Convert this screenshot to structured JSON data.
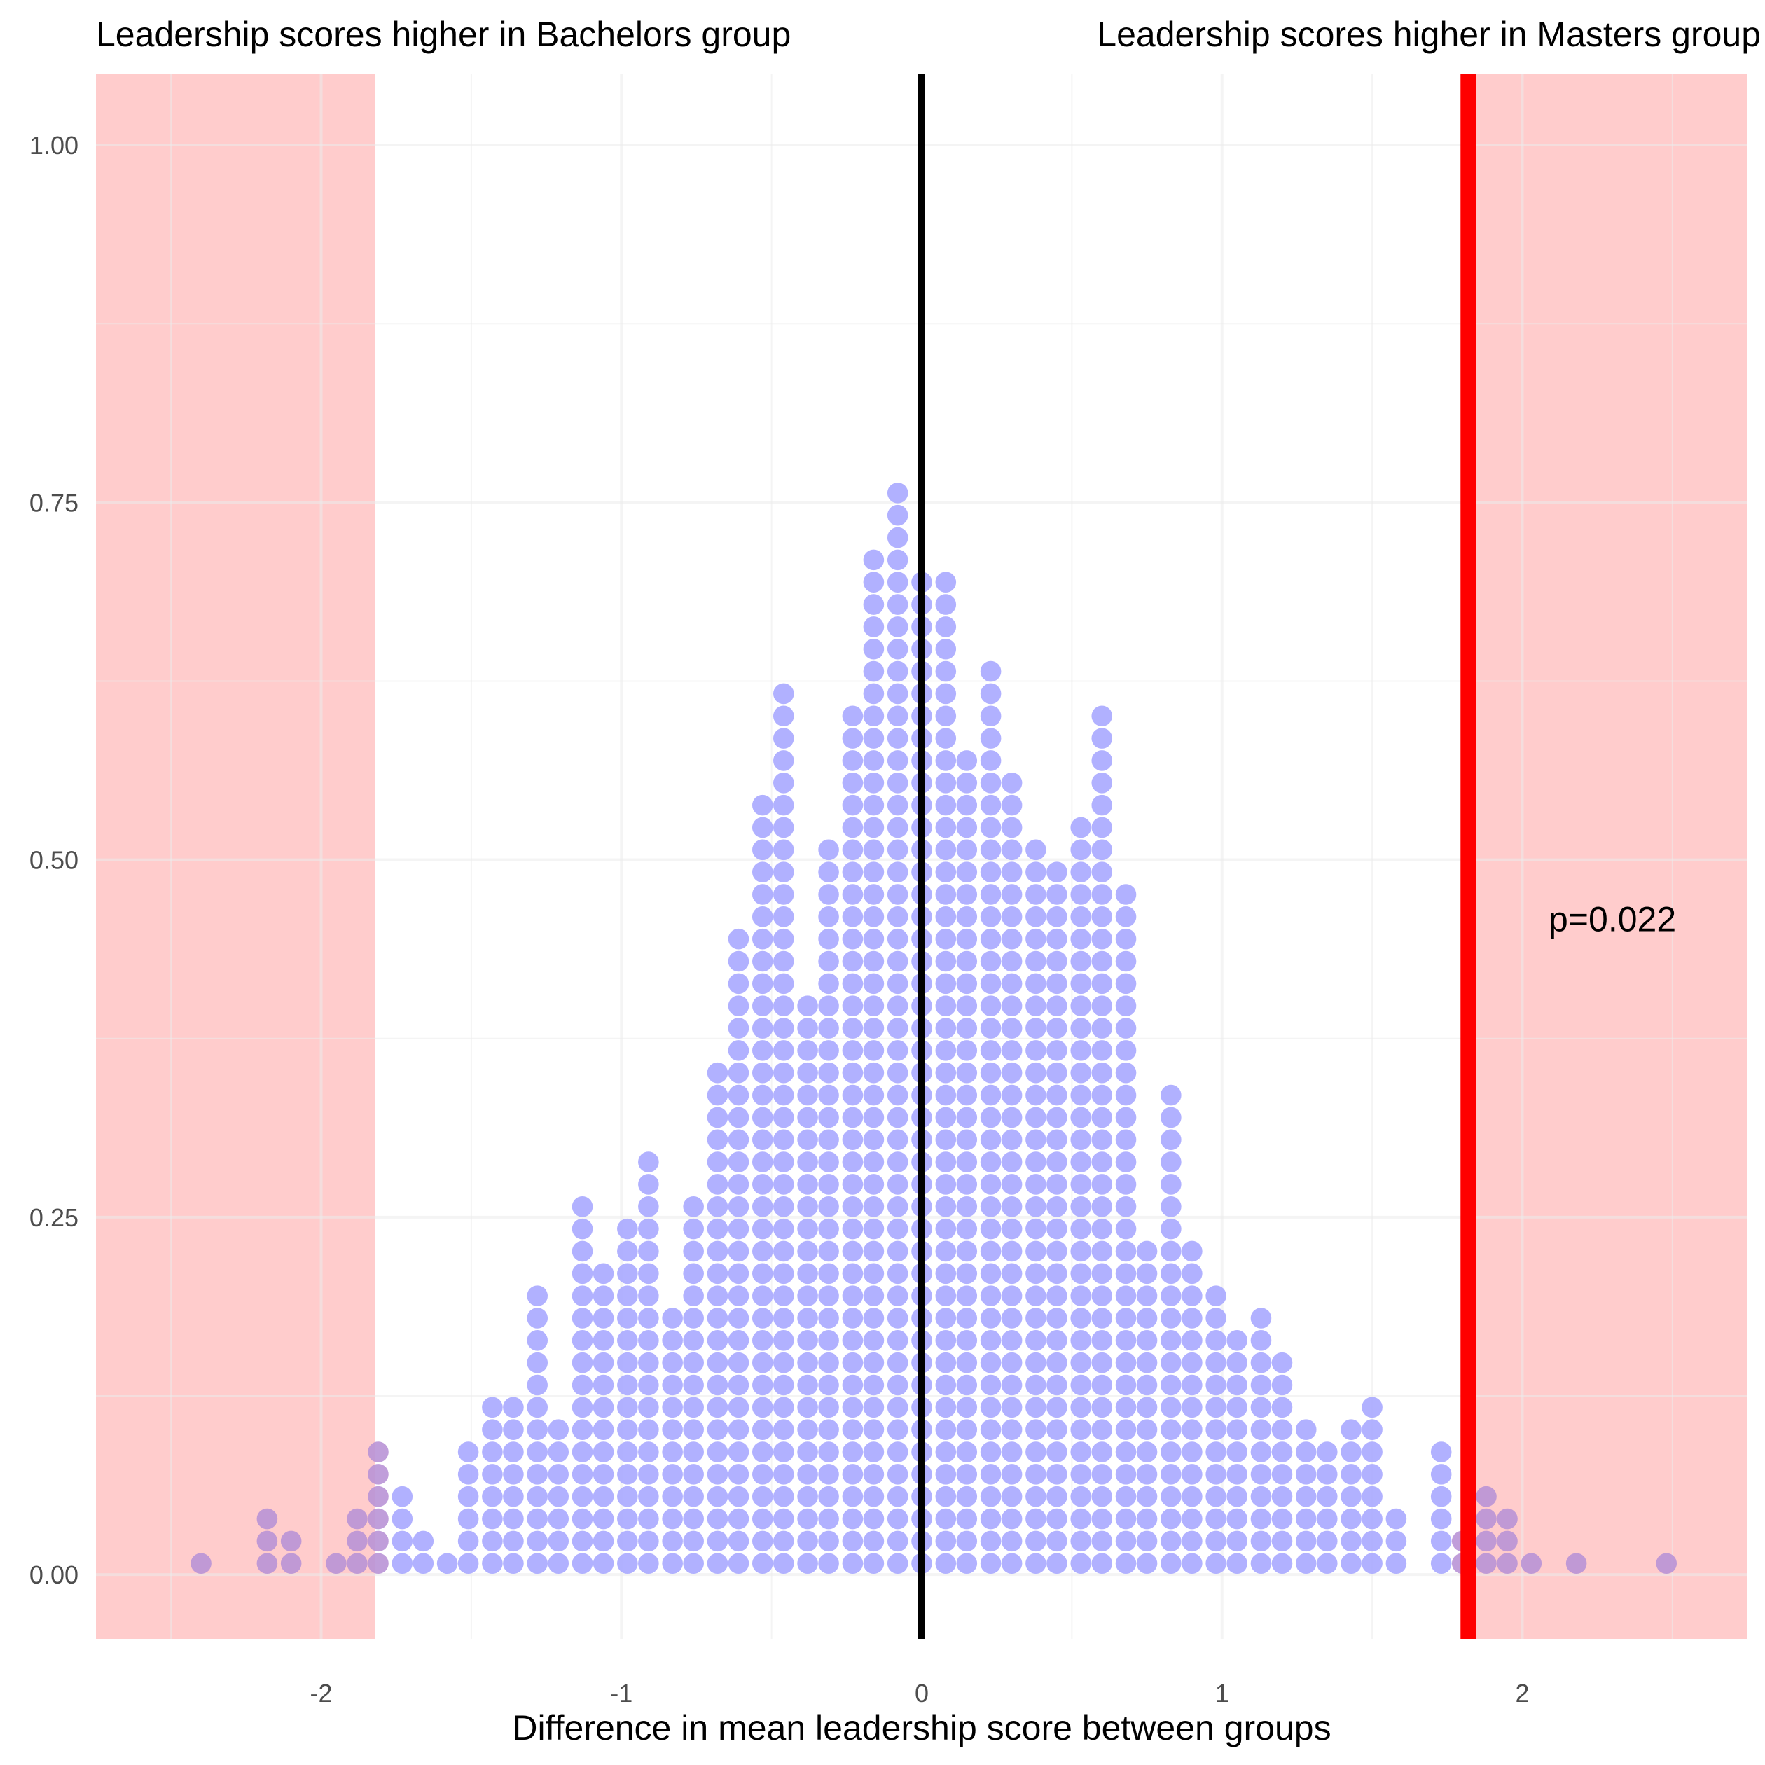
{
  "chart_data": {
    "type": "dotplot",
    "left_annotation": "Leadership scores higher in Bachelors group",
    "right_annotation": "Leadership scores higher in Masters group",
    "xlabel": "Difference in mean leadership score between groups",
    "ylabel": "",
    "xlim": [
      -2.75,
      2.75
    ],
    "ylim": [
      -0.045,
      1.05
    ],
    "x_ticks": [
      -2,
      -1,
      0,
      1,
      2
    ],
    "x_tick_labels": [
      "-2",
      "-1",
      "0",
      "1",
      "2"
    ],
    "y_ticks": [
      0,
      0.25,
      0.5,
      0.75,
      1
    ],
    "y_tick_labels": [
      "0.00",
      "0.25",
      "0.50",
      "0.75",
      "1.00"
    ],
    "grid": true,
    "null_value": 0,
    "observed_difference": 1.82,
    "p_value_label": "p=0.022",
    "shaded_regions": [
      [
        -2.75,
        -1.82
      ],
      [
        1.82,
        2.75
      ]
    ],
    "dot_bin_width": 0.075,
    "dot_step": 0.0156,
    "dot_bins": [
      {
        "x": -2.4,
        "count": 1
      },
      {
        "x": -2.18,
        "count": 3
      },
      {
        "x": -2.1,
        "count": 2
      },
      {
        "x": -1.95,
        "count": 1
      },
      {
        "x": -1.88,
        "count": 3
      },
      {
        "x": -1.81,
        "count": 6
      },
      {
        "x": -1.73,
        "count": 4
      },
      {
        "x": -1.66,
        "count": 2
      },
      {
        "x": -1.58,
        "count": 1
      },
      {
        "x": -1.51,
        "count": 6
      },
      {
        "x": -1.43,
        "count": 8
      },
      {
        "x": -1.36,
        "count": 8
      },
      {
        "x": -1.28,
        "count": 13
      },
      {
        "x": -1.21,
        "count": 7
      },
      {
        "x": -1.13,
        "count": 17
      },
      {
        "x": -1.06,
        "count": 14
      },
      {
        "x": -0.98,
        "count": 16
      },
      {
        "x": -0.91,
        "count": 19
      },
      {
        "x": -0.83,
        "count": 12
      },
      {
        "x": -0.76,
        "count": 17
      },
      {
        "x": -0.68,
        "count": 23
      },
      {
        "x": -0.61,
        "count": 29
      },
      {
        "x": -0.53,
        "count": 35
      },
      {
        "x": -0.46,
        "count": 40
      },
      {
        "x": -0.38,
        "count": 26
      },
      {
        "x": -0.31,
        "count": 33
      },
      {
        "x": -0.23,
        "count": 39
      },
      {
        "x": -0.16,
        "count": 46
      },
      {
        "x": -0.08,
        "count": 49
      },
      {
        "x": 0.0,
        "count": 45
      },
      {
        "x": 0.08,
        "count": 45
      },
      {
        "x": 0.15,
        "count": 37
      },
      {
        "x": 0.23,
        "count": 41
      },
      {
        "x": 0.3,
        "count": 36
      },
      {
        "x": 0.38,
        "count": 33
      },
      {
        "x": 0.45,
        "count": 32
      },
      {
        "x": 0.53,
        "count": 34
      },
      {
        "x": 0.6,
        "count": 39
      },
      {
        "x": 0.68,
        "count": 31
      },
      {
        "x": 0.75,
        "count": 15
      },
      {
        "x": 0.83,
        "count": 22
      },
      {
        "x": 0.9,
        "count": 15
      },
      {
        "x": 0.98,
        "count": 13
      },
      {
        "x": 1.05,
        "count": 11
      },
      {
        "x": 1.13,
        "count": 12
      },
      {
        "x": 1.2,
        "count": 10
      },
      {
        "x": 1.28,
        "count": 7
      },
      {
        "x": 1.35,
        "count": 6
      },
      {
        "x": 1.43,
        "count": 7
      },
      {
        "x": 1.5,
        "count": 8
      },
      {
        "x": 1.58,
        "count": 3
      },
      {
        "x": 1.73,
        "count": 6
      },
      {
        "x": 1.8,
        "count": 2
      },
      {
        "x": 1.88,
        "count": 4
      },
      {
        "x": 1.95,
        "count": 3
      },
      {
        "x": 2.03,
        "count": 1
      },
      {
        "x": 2.18,
        "count": 1
      },
      {
        "x": 2.48,
        "count": 1
      }
    ],
    "colors": {
      "dots": "#a9a9ff",
      "dots_in_region": "#b994d6",
      "region": "#ffcccc",
      "observed_line": "#ff0000",
      "null_line": "#000000",
      "grid": "#ebebeb"
    }
  }
}
